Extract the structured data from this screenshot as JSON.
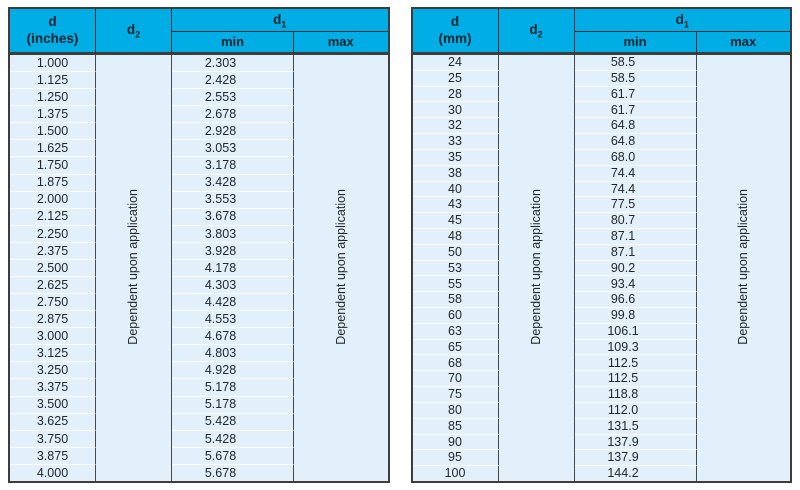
{
  "colors": {
    "header_bg": "#00AEE5",
    "row_bg": "#E1F0FA",
    "border_dark": "#3D3D3D",
    "row_divider": "#FFFFFF",
    "text": "#23282C"
  },
  "tables": [
    {
      "id": "inches",
      "header": {
        "d_label": "d",
        "d_unit": "(inches)",
        "d2_base": "d",
        "d2_sub": "2",
        "d1_base": "d",
        "d1_sub": "1",
        "min": "min",
        "max": "max"
      },
      "d2_note": "Dependent upon application",
      "max_note": "Dependent upon application",
      "rows": [
        [
          "1.000",
          "2.303"
        ],
        [
          "1.125",
          "2.428"
        ],
        [
          "1.250",
          "2.553"
        ],
        [
          "1.375",
          "2.678"
        ],
        [
          "1.500",
          "2.928"
        ],
        [
          "1.625",
          "3.053"
        ],
        [
          "1.750",
          "3.178"
        ],
        [
          "1.875",
          "3.428"
        ],
        [
          "2.000",
          "3.553"
        ],
        [
          "2.125",
          "3.678"
        ],
        [
          "2.250",
          "3.803"
        ],
        [
          "2.375",
          "3.928"
        ],
        [
          "2.500",
          "4.178"
        ],
        [
          "2.625",
          "4.303"
        ],
        [
          "2.750",
          "4.428"
        ],
        [
          "2.875",
          "4.553"
        ],
        [
          "3.000",
          "4.678"
        ],
        [
          "3.125",
          "4.803"
        ],
        [
          "3.250",
          "4.928"
        ],
        [
          "3.375",
          "5.178"
        ],
        [
          "3.500",
          "5.178"
        ],
        [
          "3.625",
          "5.428"
        ],
        [
          "3.750",
          "5.428"
        ],
        [
          "3.875",
          "5.678"
        ],
        [
          "4.000",
          "5.678"
        ]
      ]
    },
    {
      "id": "mm",
      "header": {
        "d_label": "d",
        "d_unit": "(mm)",
        "d2_base": "d",
        "d2_sub": "2",
        "d1_base": "d",
        "d1_sub": "1",
        "min": "min",
        "max": "max"
      },
      "d2_note": "Dependent upon application",
      "max_note": "Dependent upon application",
      "rows": [
        [
          "24",
          "58.5"
        ],
        [
          "25",
          "58.5"
        ],
        [
          "28",
          "61.7"
        ],
        [
          "30",
          "61.7"
        ],
        [
          "32",
          "64.8"
        ],
        [
          "33",
          "64.8"
        ],
        [
          "35",
          "68.0"
        ],
        [
          "38",
          "74.4"
        ],
        [
          "40",
          "74.4"
        ],
        [
          "43",
          "77.5"
        ],
        [
          "45",
          "80.7"
        ],
        [
          "48",
          "87.1"
        ],
        [
          "50",
          "87.1"
        ],
        [
          "53",
          "90.2"
        ],
        [
          "55",
          "93.4"
        ],
        [
          "58",
          "96.6"
        ],
        [
          "60",
          "99.8"
        ],
        [
          "63",
          "106.1"
        ],
        [
          "65",
          "109.3"
        ],
        [
          "68",
          "112.5"
        ],
        [
          "70",
          "112.5"
        ],
        [
          "75",
          "118.8"
        ],
        [
          "80",
          "112.0"
        ],
        [
          "85",
          "131.5"
        ],
        [
          "90",
          "137.9"
        ],
        [
          "95",
          "137.9"
        ],
        [
          "100",
          "144.2"
        ]
      ]
    }
  ]
}
